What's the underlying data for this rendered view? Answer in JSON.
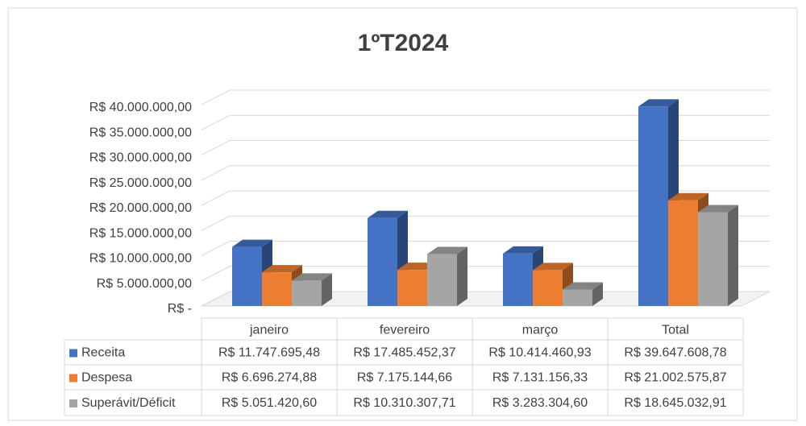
{
  "chart_data": {
    "type": "bar3d",
    "title": "1ºT2024",
    "categories": [
      "janeiro",
      "fevereiro",
      "março",
      "Total"
    ],
    "series": [
      {
        "name": "Receita",
        "color": "#4472c4",
        "values": [
          11747695.48,
          17485452.37,
          10414460.93,
          39647608.78
        ],
        "value_labels": [
          "R$ 11.747.695,48",
          "R$ 17.485.452,37",
          "R$ 10.414.460,93",
          "R$ 39.647.608,78"
        ]
      },
      {
        "name": "Despesa",
        "color": "#ed7d31",
        "values": [
          6696274.88,
          7175144.66,
          7131156.33,
          21002575.87
        ],
        "value_labels": [
          "R$ 6.696.274,88",
          "R$ 7.175.144,66",
          "R$ 7.131.156,33",
          "R$ 21.002.575,87"
        ]
      },
      {
        "name": "Superávit/Déficit",
        "color": "#a5a5a5",
        "values": [
          5051420.6,
          10310307.71,
          3283304.6,
          18645032.91
        ],
        "value_labels": [
          "R$ 5.051.420,60",
          "R$ 10.310.307,71",
          "R$ 3.283.304,60",
          "R$ 18.645.032,91"
        ]
      }
    ],
    "ylim": [
      0,
      40000000
    ],
    "yticks": [
      {
        "value": 0,
        "label": "R$ -"
      },
      {
        "value": 5000000,
        "label": "R$ 5.000.000,00"
      },
      {
        "value": 10000000,
        "label": "R$ 10.000.000,00"
      },
      {
        "value": 15000000,
        "label": "R$ 15.000.000,00"
      },
      {
        "value": 20000000,
        "label": "R$ 20.000.000,00"
      },
      {
        "value": 25000000,
        "label": "R$ 25.000.000,00"
      },
      {
        "value": 30000000,
        "label": "R$ 30.000.000,00"
      },
      {
        "value": 35000000,
        "label": "R$ 35.000.000,00"
      },
      {
        "value": 40000000,
        "label": "R$ 40.000.000,00"
      }
    ],
    "grid": true
  }
}
